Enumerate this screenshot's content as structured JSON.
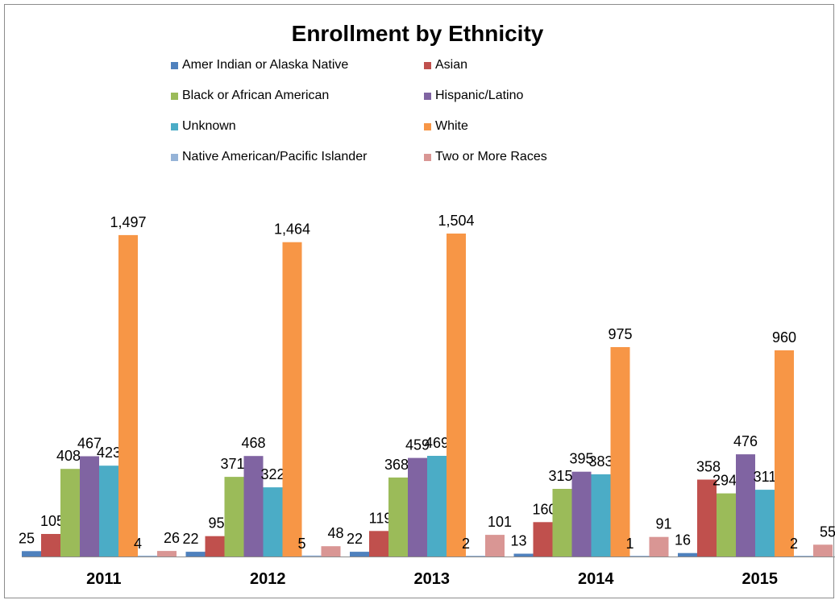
{
  "chart_data": {
    "type": "bar",
    "title": "Enrollment by Ethnicity",
    "categories": [
      "2011",
      "2012",
      "2013",
      "2014",
      "2015"
    ],
    "series": [
      {
        "name": "Amer Indian or Alaska Native",
        "color": "#4f81bd",
        "values": [
          25,
          22,
          22,
          13,
          16
        ]
      },
      {
        "name": "Asian",
        "color": "#c0504d",
        "values": [
          105,
          95,
          119,
          160,
          358
        ]
      },
      {
        "name": "Black or African American",
        "color": "#9bbb59",
        "values": [
          408,
          371,
          368,
          315,
          294
        ]
      },
      {
        "name": "Hispanic/Latino",
        "color": "#8064a2",
        "values": [
          467,
          468,
          459,
          395,
          476
        ]
      },
      {
        "name": "Unknown",
        "color": "#4bacc6",
        "values": [
          423,
          322,
          469,
          383,
          311
        ]
      },
      {
        "name": "White",
        "color": "#f79646",
        "values": [
          1497,
          1464,
          1504,
          975,
          960
        ]
      },
      {
        "name": "Native American/Pacific Islander",
        "color": "#95b3d7",
        "values": [
          4,
          5,
          2,
          1,
          2
        ]
      },
      {
        "name": "Two or More Races",
        "color": "#d99694",
        "values": [
          26,
          48,
          101,
          91,
          55
        ]
      }
    ],
    "data_labels": [
      [
        "25",
        "105",
        "408",
        "467",
        "423",
        "1,497",
        "4",
        "26"
      ],
      [
        "22",
        "95",
        "371",
        "468",
        "322",
        "1,464",
        "5",
        "48"
      ],
      [
        "22",
        "119",
        "368",
        "459",
        "469",
        "1,504",
        "2",
        "101"
      ],
      [
        "13",
        "160",
        "315",
        "395",
        "383",
        "975",
        "1",
        "91"
      ],
      [
        "16",
        "358",
        "294",
        "476",
        "311",
        "960",
        "2",
        "55"
      ]
    ],
    "ylim": [
      0,
      1600
    ],
    "grid": false,
    "legend_position": "top"
  }
}
